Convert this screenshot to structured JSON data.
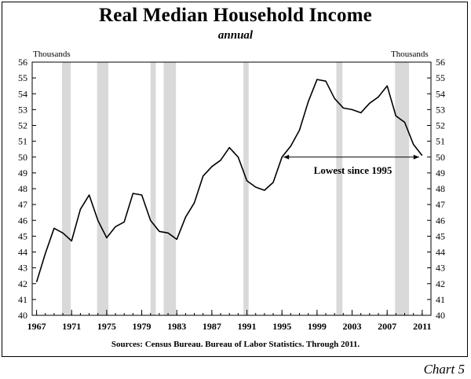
{
  "chart_data": {
    "type": "line",
    "title": "Real Median Household Income",
    "subtitle": "annual",
    "ylabel_left": "Thousands",
    "ylabel_right": "Thousands",
    "ylim": [
      40,
      56
    ],
    "yticks": [
      40,
      41,
      42,
      43,
      44,
      45,
      46,
      47,
      48,
      49,
      50,
      51,
      52,
      53,
      54,
      55,
      56
    ],
    "xlim": [
      1966.5,
      2012
    ],
    "xticks": [
      1967,
      1971,
      1975,
      1979,
      1983,
      1987,
      1991,
      1995,
      1999,
      2003,
      2007,
      2011
    ],
    "grid": false,
    "series": [
      {
        "name": "Real Median Household Income",
        "x": [
          1967,
          1968,
          1969,
          1970,
          1971,
          1972,
          1973,
          1974,
          1975,
          1976,
          1977,
          1978,
          1979,
          1980,
          1981,
          1982,
          1983,
          1984,
          1985,
          1986,
          1987,
          1988,
          1989,
          1990,
          1991,
          1992,
          1993,
          1994,
          1995,
          1996,
          1997,
          1998,
          1999,
          2000,
          2001,
          2002,
          2003,
          2004,
          2005,
          2006,
          2007,
          2008,
          2009,
          2010,
          2011
        ],
        "values": [
          42.1,
          43.9,
          45.5,
          45.2,
          44.7,
          46.7,
          47.6,
          46.0,
          44.9,
          45.6,
          45.9,
          47.7,
          47.6,
          46.0,
          45.3,
          45.2,
          44.8,
          46.2,
          47.1,
          48.8,
          49.4,
          49.8,
          50.6,
          50.0,
          48.5,
          48.1,
          47.9,
          48.4,
          50.0,
          50.7,
          51.7,
          53.5,
          54.9,
          54.8,
          53.7,
          53.1,
          53.0,
          52.8,
          53.4,
          53.8,
          54.5,
          52.6,
          52.2,
          50.8,
          50.1
        ]
      }
    ],
    "recessions": [
      {
        "start": 1969.9,
        "end": 1970.9
      },
      {
        "start": 1973.9,
        "end": 1975.2
      },
      {
        "start": 1980.0,
        "end": 1980.6
      },
      {
        "start": 1981.5,
        "end": 1982.9
      },
      {
        "start": 1990.6,
        "end": 1991.2
      },
      {
        "start": 2001.2,
        "end": 2001.9
      },
      {
        "start": 2007.9,
        "end": 2009.5
      }
    ],
    "annotation": {
      "text": "Lowest since 1995",
      "arrow_from": 1995,
      "arrow_to": 2011,
      "y": 50.0
    },
    "source": "Sources: Census Bureau. Bureau of Labor Statistics. Through  2011.",
    "chart_label": "Chart 5"
  }
}
